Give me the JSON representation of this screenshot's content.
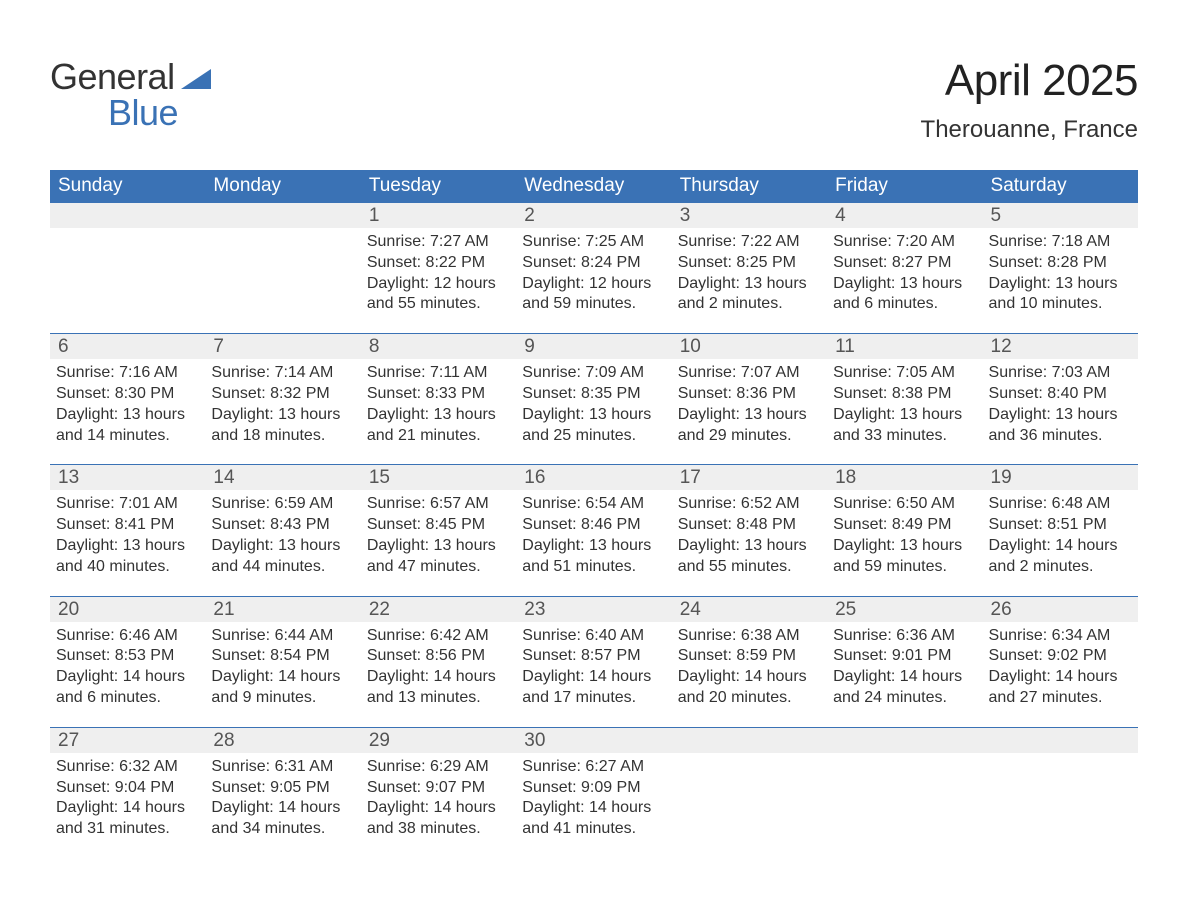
{
  "logo": {
    "text1": "General",
    "text2": "Blue",
    "accent_color": "#3a72b5",
    "text_color": "#333333"
  },
  "title": "April 2025",
  "location": "Therouanne, France",
  "colors": {
    "header_bg": "#3a72b5",
    "header_fg": "#ffffff",
    "band_bg": "#efefef",
    "band_fg": "#555555",
    "cell_top_border": "#3a72b5",
    "body_text": "#333333",
    "page_bg": "#ffffff"
  },
  "typography": {
    "title_fontsize": 44,
    "location_fontsize": 24,
    "dow_fontsize": 19,
    "body_fontsize": 16
  },
  "day_labels": [
    "Sunday",
    "Monday",
    "Tuesday",
    "Wednesday",
    "Thursday",
    "Friday",
    "Saturday"
  ],
  "field_labels": {
    "sunrise": "Sunrise:",
    "sunset": "Sunset:",
    "daylight": "Daylight:"
  },
  "weeks": [
    [
      {
        "day": null
      },
      {
        "day": null
      },
      {
        "day": 1,
        "sunrise": "7:27 AM",
        "sunset": "8:22 PM",
        "daylight": "12 hours and 55 minutes."
      },
      {
        "day": 2,
        "sunrise": "7:25 AM",
        "sunset": "8:24 PM",
        "daylight": "12 hours and 59 minutes."
      },
      {
        "day": 3,
        "sunrise": "7:22 AM",
        "sunset": "8:25 PM",
        "daylight": "13 hours and 2 minutes."
      },
      {
        "day": 4,
        "sunrise": "7:20 AM",
        "sunset": "8:27 PM",
        "daylight": "13 hours and 6 minutes."
      },
      {
        "day": 5,
        "sunrise": "7:18 AM",
        "sunset": "8:28 PM",
        "daylight": "13 hours and 10 minutes."
      }
    ],
    [
      {
        "day": 6,
        "sunrise": "7:16 AM",
        "sunset": "8:30 PM",
        "daylight": "13 hours and 14 minutes."
      },
      {
        "day": 7,
        "sunrise": "7:14 AM",
        "sunset": "8:32 PM",
        "daylight": "13 hours and 18 minutes."
      },
      {
        "day": 8,
        "sunrise": "7:11 AM",
        "sunset": "8:33 PM",
        "daylight": "13 hours and 21 minutes."
      },
      {
        "day": 9,
        "sunrise": "7:09 AM",
        "sunset": "8:35 PM",
        "daylight": "13 hours and 25 minutes."
      },
      {
        "day": 10,
        "sunrise": "7:07 AM",
        "sunset": "8:36 PM",
        "daylight": "13 hours and 29 minutes."
      },
      {
        "day": 11,
        "sunrise": "7:05 AM",
        "sunset": "8:38 PM",
        "daylight": "13 hours and 33 minutes."
      },
      {
        "day": 12,
        "sunrise": "7:03 AM",
        "sunset": "8:40 PM",
        "daylight": "13 hours and 36 minutes."
      }
    ],
    [
      {
        "day": 13,
        "sunrise": "7:01 AM",
        "sunset": "8:41 PM",
        "daylight": "13 hours and 40 minutes."
      },
      {
        "day": 14,
        "sunrise": "6:59 AM",
        "sunset": "8:43 PM",
        "daylight": "13 hours and 44 minutes."
      },
      {
        "day": 15,
        "sunrise": "6:57 AM",
        "sunset": "8:45 PM",
        "daylight": "13 hours and 47 minutes."
      },
      {
        "day": 16,
        "sunrise": "6:54 AM",
        "sunset": "8:46 PM",
        "daylight": "13 hours and 51 minutes."
      },
      {
        "day": 17,
        "sunrise": "6:52 AM",
        "sunset": "8:48 PM",
        "daylight": "13 hours and 55 minutes."
      },
      {
        "day": 18,
        "sunrise": "6:50 AM",
        "sunset": "8:49 PM",
        "daylight": "13 hours and 59 minutes."
      },
      {
        "day": 19,
        "sunrise": "6:48 AM",
        "sunset": "8:51 PM",
        "daylight": "14 hours and 2 minutes."
      }
    ],
    [
      {
        "day": 20,
        "sunrise": "6:46 AM",
        "sunset": "8:53 PM",
        "daylight": "14 hours and 6 minutes."
      },
      {
        "day": 21,
        "sunrise": "6:44 AM",
        "sunset": "8:54 PM",
        "daylight": "14 hours and 9 minutes."
      },
      {
        "day": 22,
        "sunrise": "6:42 AM",
        "sunset": "8:56 PM",
        "daylight": "14 hours and 13 minutes."
      },
      {
        "day": 23,
        "sunrise": "6:40 AM",
        "sunset": "8:57 PM",
        "daylight": "14 hours and 17 minutes."
      },
      {
        "day": 24,
        "sunrise": "6:38 AM",
        "sunset": "8:59 PM",
        "daylight": "14 hours and 20 minutes."
      },
      {
        "day": 25,
        "sunrise": "6:36 AM",
        "sunset": "9:01 PM",
        "daylight": "14 hours and 24 minutes."
      },
      {
        "day": 26,
        "sunrise": "6:34 AM",
        "sunset": "9:02 PM",
        "daylight": "14 hours and 27 minutes."
      }
    ],
    [
      {
        "day": 27,
        "sunrise": "6:32 AM",
        "sunset": "9:04 PM",
        "daylight": "14 hours and 31 minutes."
      },
      {
        "day": 28,
        "sunrise": "6:31 AM",
        "sunset": "9:05 PM",
        "daylight": "14 hours and 34 minutes."
      },
      {
        "day": 29,
        "sunrise": "6:29 AM",
        "sunset": "9:07 PM",
        "daylight": "14 hours and 38 minutes."
      },
      {
        "day": 30,
        "sunrise": "6:27 AM",
        "sunset": "9:09 PM",
        "daylight": "14 hours and 41 minutes."
      },
      {
        "day": null
      },
      {
        "day": null
      },
      {
        "day": null
      }
    ]
  ]
}
